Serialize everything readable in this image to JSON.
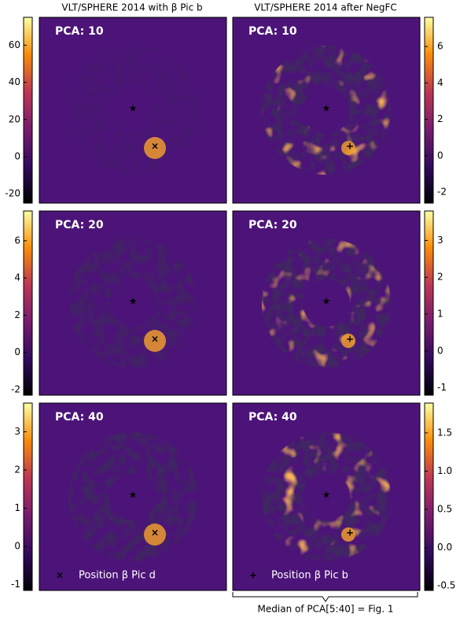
{
  "column_titles": [
    "VLT/SPHERE 2014 with β Pic b",
    "VLT/SPHERE 2014 after NegFC"
  ],
  "panels": [
    {
      "label": "PCA: 10",
      "colorbar": {
        "lim": [
          -25,
          75
        ],
        "ticks": [
          -20,
          0,
          20,
          40,
          60
        ]
      }
    },
    {
      "label": "PCA: 10",
      "colorbar": {
        "lim": [
          -2.6,
          7.6
        ],
        "ticks": [
          -2,
          0,
          2,
          4,
          6
        ]
      }
    },
    {
      "label": "PCA: 20",
      "colorbar": {
        "lim": [
          -2.3,
          7.6
        ],
        "ticks": [
          -2,
          0,
          2,
          4,
          6
        ]
      }
    },
    {
      "label": "PCA: 20",
      "colorbar": {
        "lim": [
          -1.2,
          3.8
        ],
        "ticks": [
          -1,
          0,
          1,
          2,
          3
        ]
      }
    },
    {
      "label": "PCA: 40",
      "colorbar": {
        "lim": [
          -1.15,
          3.75
        ],
        "ticks": [
          -1,
          0,
          1,
          2,
          3
        ]
      }
    },
    {
      "label": "PCA: 40",
      "colorbar": {
        "lim": [
          -0.56,
          1.89
        ],
        "ticks": [
          {
            "value": -0.5,
            "label": "-0.5"
          },
          {
            "value": 0,
            "label": "0.0"
          },
          {
            "value": 0.5,
            "label": "0.5"
          },
          {
            "value": 1,
            "label": "1.0"
          },
          {
            "value": 1.5,
            "label": "1.5"
          }
        ]
      }
    }
  ],
  "legends": [
    "Position β Pic d",
    "Position β Pic b"
  ],
  "bracket_label": "Median of PCA[5:40] = Fig. 1"
}
